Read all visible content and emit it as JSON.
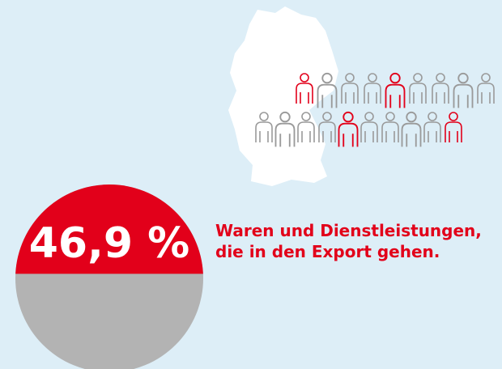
{
  "chart_data": {
    "type": "pie",
    "values": [
      46.9
    ],
    "value_labels": [
      "46,9 %"
    ],
    "colors": [
      "#e2001a",
      "#b3b3b3"
    ],
    "annotation": [
      "Waren und Dienstleistungen,",
      "die in den Export gehen."
    ]
  }
}
